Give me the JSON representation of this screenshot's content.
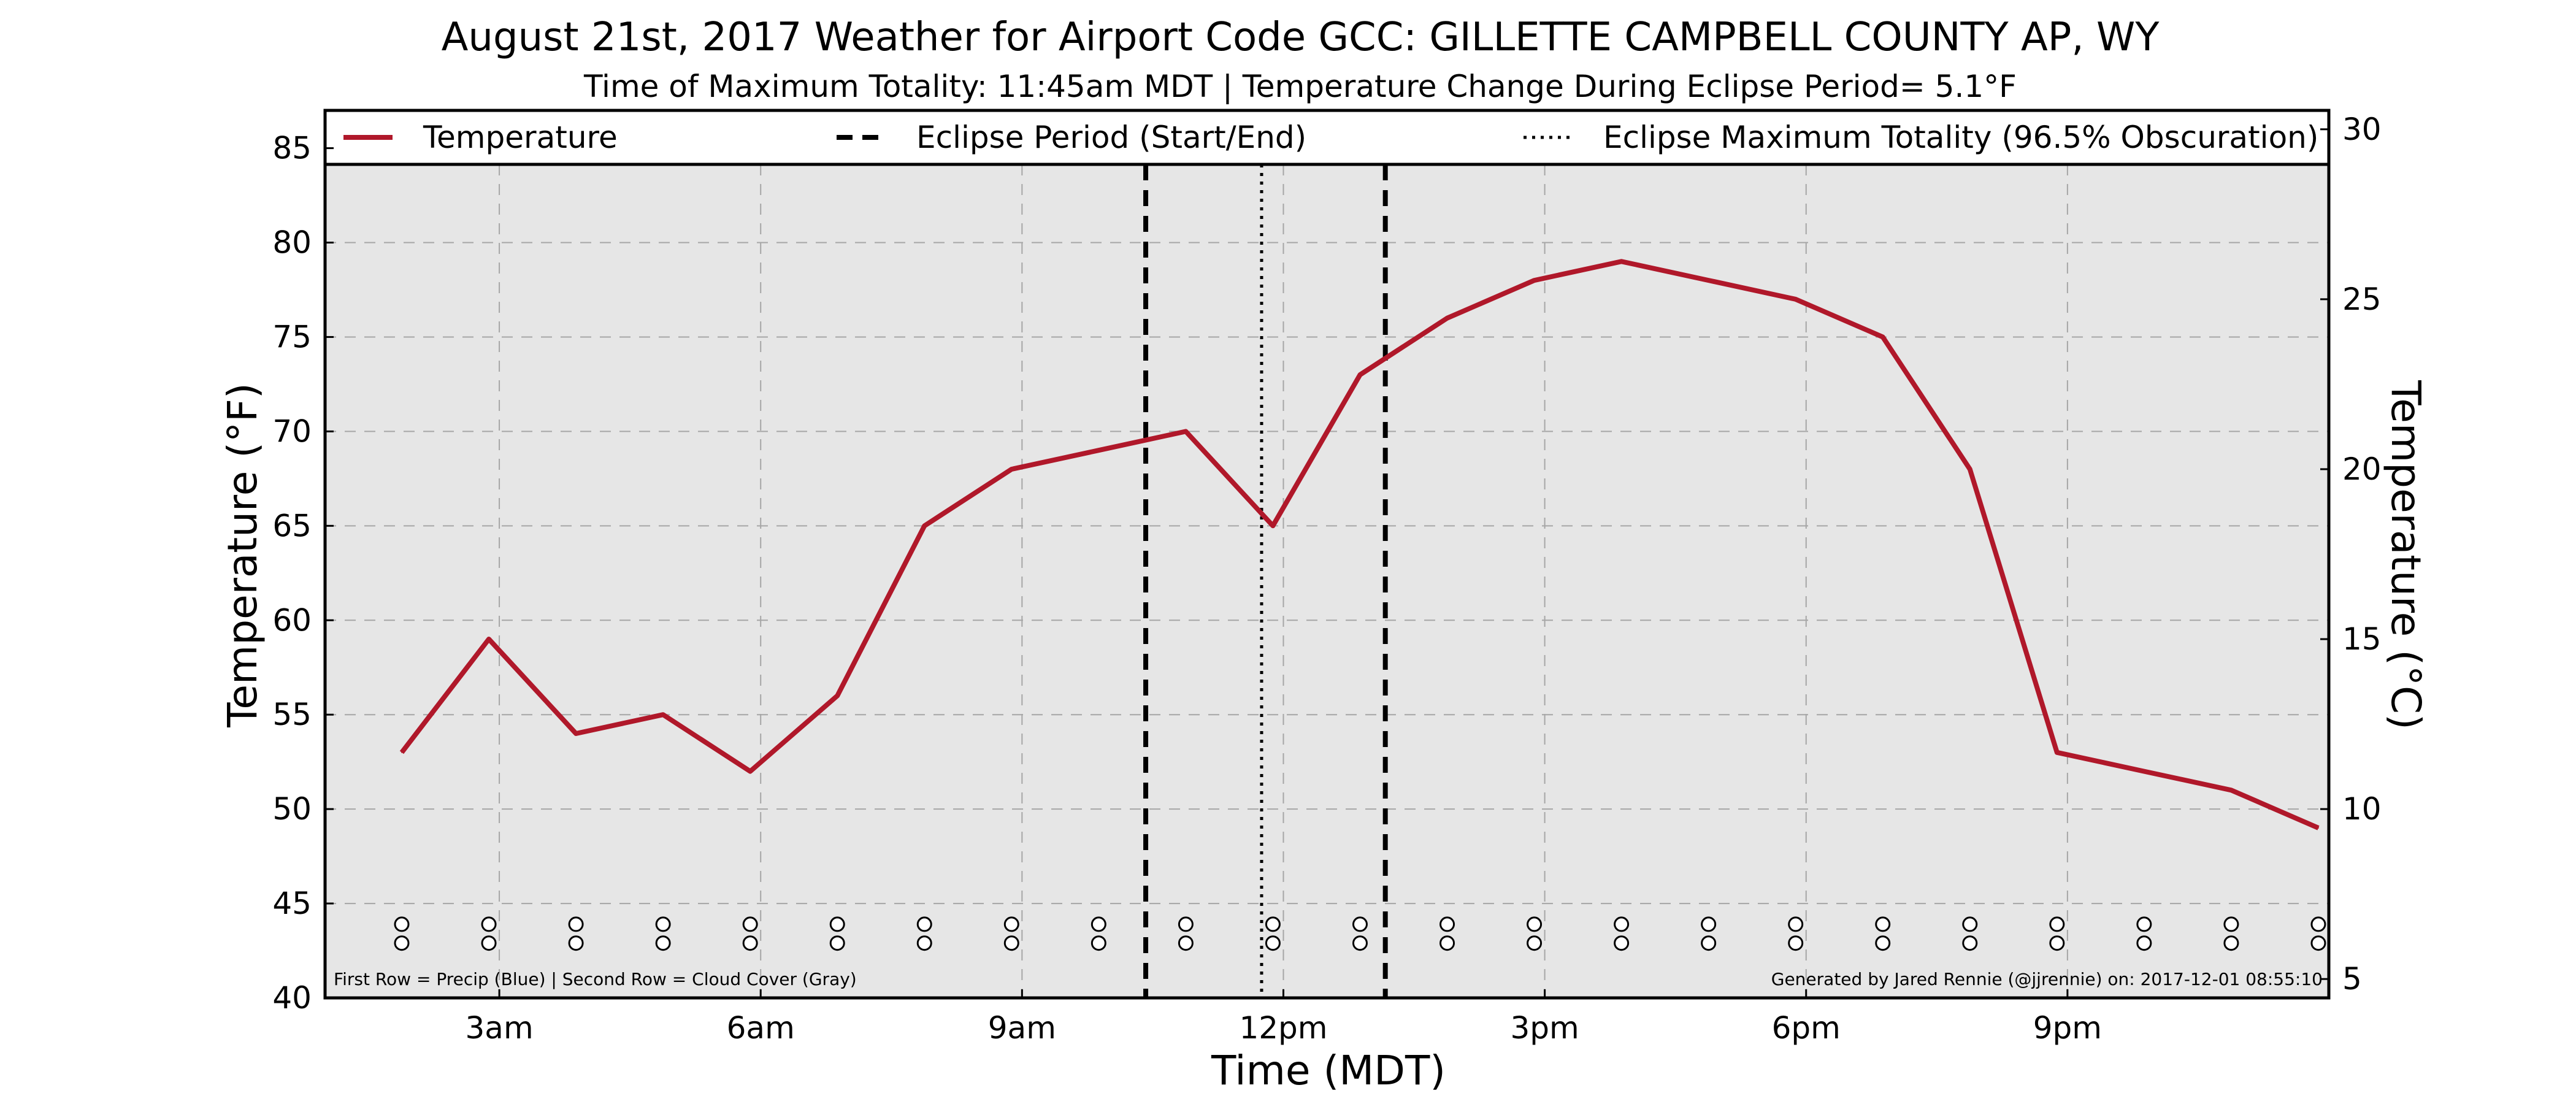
{
  "chart_data": {
    "type": "line",
    "title": "August 21st, 2017 Weather for Airport Code GCC: GILLETTE CAMPBELL COUNTY AP, WY",
    "subtitle": "Time of Maximum Totality: 11:45am MDT | Temperature Change During Eclipse Period= 5.1°F",
    "xlabel": "Time (MDT)",
    "ylabel": "Temperature (°F)",
    "ylabel_right": "Temperature (°C)",
    "xlim": [
      1,
      24
    ],
    "ylim": [
      40,
      87
    ],
    "y_ticks": [
      40,
      45,
      50,
      55,
      60,
      65,
      70,
      75,
      80,
      85
    ],
    "y_right_ticks": [
      5,
      10,
      15,
      20,
      25,
      30
    ],
    "x_ticks": [
      {
        "value": 3,
        "label": "3am"
      },
      {
        "value": 6,
        "label": "6am"
      },
      {
        "value": 9,
        "label": "9am"
      },
      {
        "value": 12,
        "label": "12pm"
      },
      {
        "value": 15,
        "label": "3pm"
      },
      {
        "value": 18,
        "label": "6pm"
      },
      {
        "value": 21,
        "label": "9pm"
      }
    ],
    "grid": true,
    "legend_position": "top",
    "series": [
      {
        "name": "Temperature",
        "color": "#b0182a",
        "x": [
          1.88,
          2.88,
          3.88,
          4.88,
          5.88,
          6.88,
          7.88,
          8.88,
          9.88,
          10.88,
          11.88,
          12.88,
          13.88,
          14.88,
          15.88,
          16.88,
          17.88,
          18.88,
          19.88,
          20.88,
          21.88,
          22.88,
          23.88
        ],
        "values": [
          53,
          59,
          54,
          55,
          52,
          56,
          65,
          68,
          69,
          70,
          65,
          73,
          76,
          78,
          79,
          78,
          77,
          75,
          68,
          53,
          52,
          51,
          49
        ]
      }
    ],
    "eclipse_period": {
      "name": "Eclipse Period (Start/End)",
      "start": 10.42,
      "end": 13.17,
      "color": "#000000"
    },
    "eclipse_max": {
      "name": "Eclipse Maximum Totality (96.5% Obscuration)",
      "time": 11.75,
      "color": "#000000"
    },
    "marker_rows": {
      "x": [
        1.88,
        2.88,
        3.88,
        4.88,
        5.88,
        6.88,
        7.88,
        8.88,
        9.88,
        10.88,
        11.88,
        12.88,
        13.88,
        14.88,
        15.88,
        16.88,
        17.88,
        18.88,
        19.88,
        20.88,
        21.88,
        22.88,
        23.88
      ],
      "row1_y": 43.9,
      "row2_y": 42.9
    },
    "footnote_left": "First Row = Precip (Blue) | Second Row = Cloud Cover (Gray)",
    "footnote_right": "Generated by Jared Rennie (@jjrennie) on: 2017-12-01 08:55:10",
    "colors": {
      "plot_bg": "#e6e6e6",
      "grid": "#a6a6a6",
      "line": "#b0182a"
    }
  }
}
